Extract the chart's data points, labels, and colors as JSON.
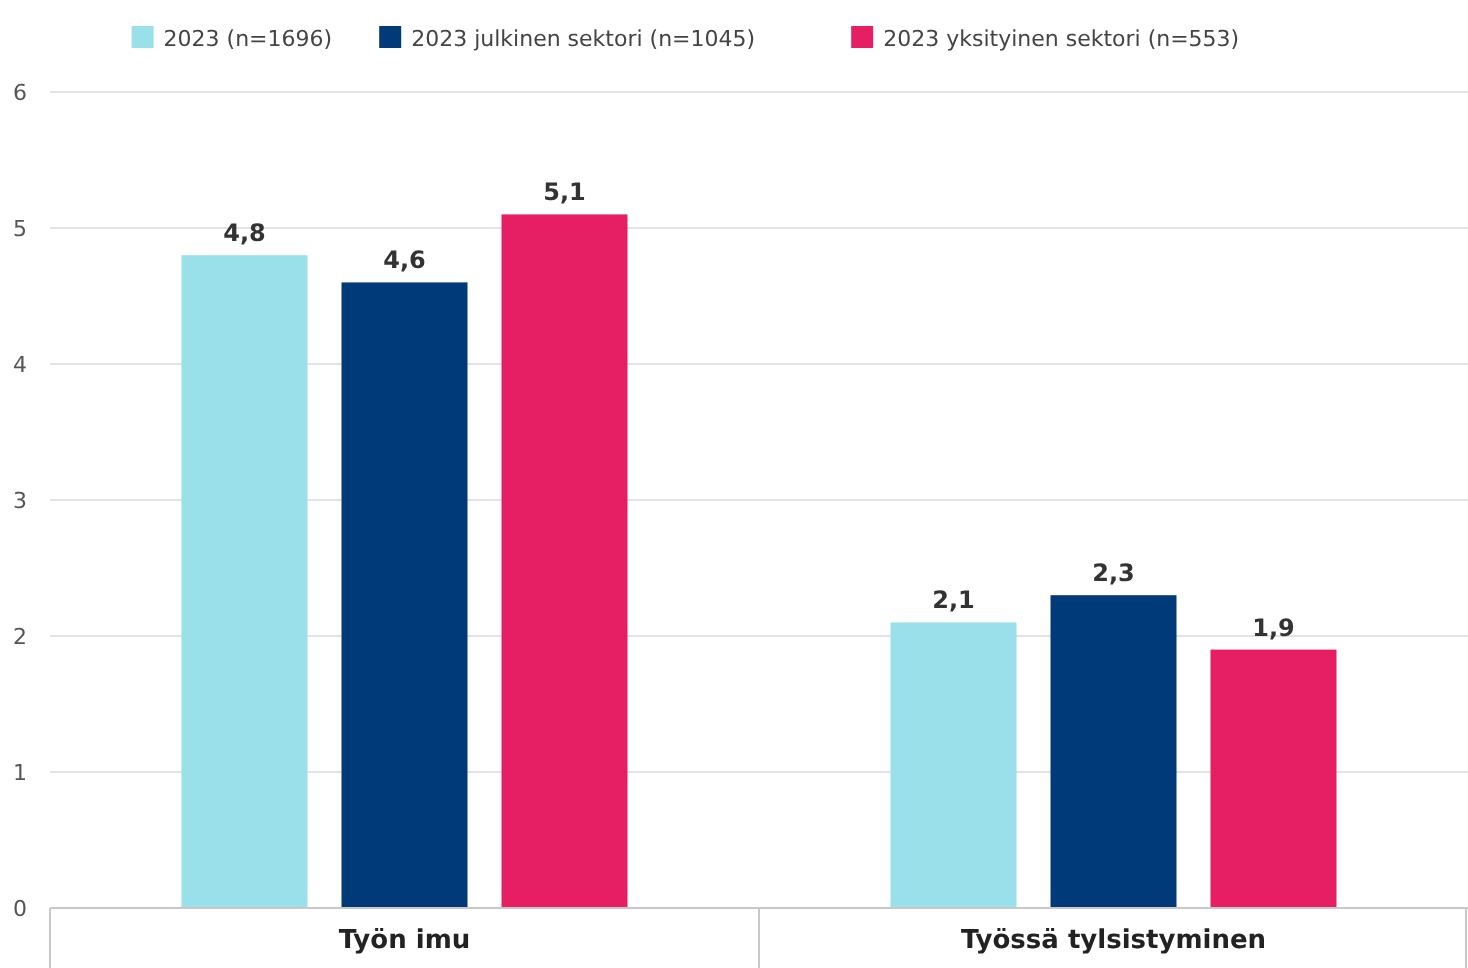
{
  "chart_data": {
    "type": "bar",
    "categories": [
      "Työn imu",
      "Työssä tylsistyminen"
    ],
    "series": [
      {
        "name": "2023 (n=1696)",
        "color": "#99e0ea",
        "values": [
          4.8,
          2.1
        ],
        "value_labels": [
          "4,8",
          "2,1"
        ]
      },
      {
        "name": "2023 julkinen sektori (n=1045)",
        "color": "#003a78",
        "values": [
          4.6,
          2.3
        ],
        "value_labels": [
          "4,6",
          "2,3"
        ]
      },
      {
        "name": "2023 yksityinen sektori (n=553)",
        "color": "#e61e64",
        "values": [
          5.1,
          1.9
        ],
        "value_labels": [
          "5,1",
          "1,9"
        ]
      }
    ],
    "ylim": [
      0,
      6
    ],
    "yticks": [
      0,
      1,
      2,
      3,
      4,
      5,
      6
    ],
    "grid": "y",
    "legend": "top"
  }
}
